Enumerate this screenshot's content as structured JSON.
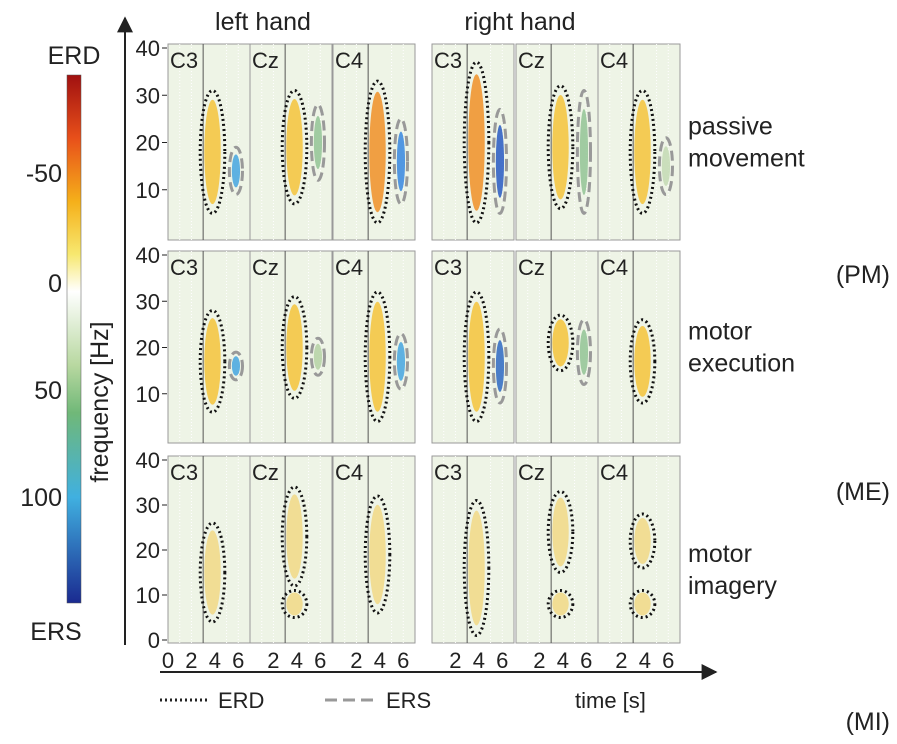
{
  "colorbar": {
    "top": "ERD",
    "bottom": "ERS",
    "ticks": [
      "-50",
      "0",
      "50",
      "100"
    ]
  },
  "y_axis": {
    "label": "frequency [Hz]",
    "ticks": [
      "40",
      "30",
      "20",
      "10",
      "0"
    ]
  },
  "x_axis": {
    "label": "time [s]",
    "first_ticks": [
      "0",
      "2",
      "4",
      "6"
    ],
    "ticks": [
      "2",
      "4",
      "6"
    ]
  },
  "groups": [
    "left hand",
    "right hand"
  ],
  "channels": [
    "C3",
    "Cz",
    "C4"
  ],
  "rows": [
    {
      "label": [
        "passive",
        "movement"
      ],
      "abbrev": "(PM)"
    },
    {
      "label": [
        "motor",
        "execution"
      ],
      "abbrev": "(ME)"
    },
    {
      "label": [
        "motor",
        "imagery"
      ],
      "abbrev": "(MI)"
    }
  ],
  "legend": {
    "erd": "ERD",
    "ers": "ERS"
  }
}
